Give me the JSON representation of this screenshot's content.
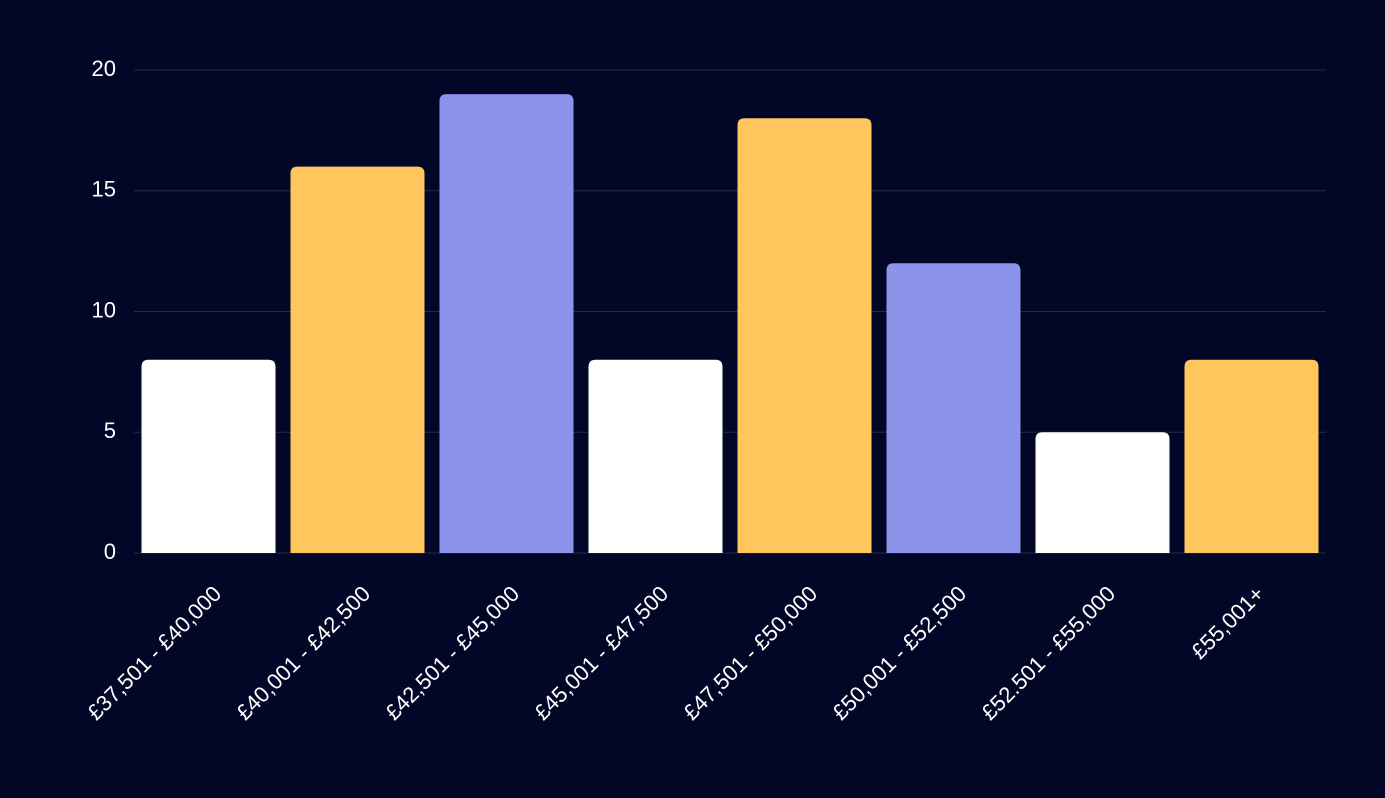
{
  "chart_data": {
    "type": "bar",
    "categories": [
      "£37,501 - £40,000",
      "£40,001 - £42,500",
      "£42,501 - £45,000",
      "£45,001 - £47,500",
      "£47,501 - £50,000",
      "£50,001 - £52,500",
      "£52.501 - £55,000",
      "£55,001+"
    ],
    "values": [
      8,
      16,
      19,
      8,
      18,
      12,
      5,
      8
    ],
    "colors": [
      "#ffffff",
      "#ffc65e",
      "#8c93ea",
      "#ffffff",
      "#ffc65e",
      "#8c93ea",
      "#ffffff",
      "#ffc65e"
    ],
    "ylim": [
      0,
      20
    ],
    "yticks": [
      0,
      5,
      10,
      15,
      20
    ],
    "grid": true
  }
}
